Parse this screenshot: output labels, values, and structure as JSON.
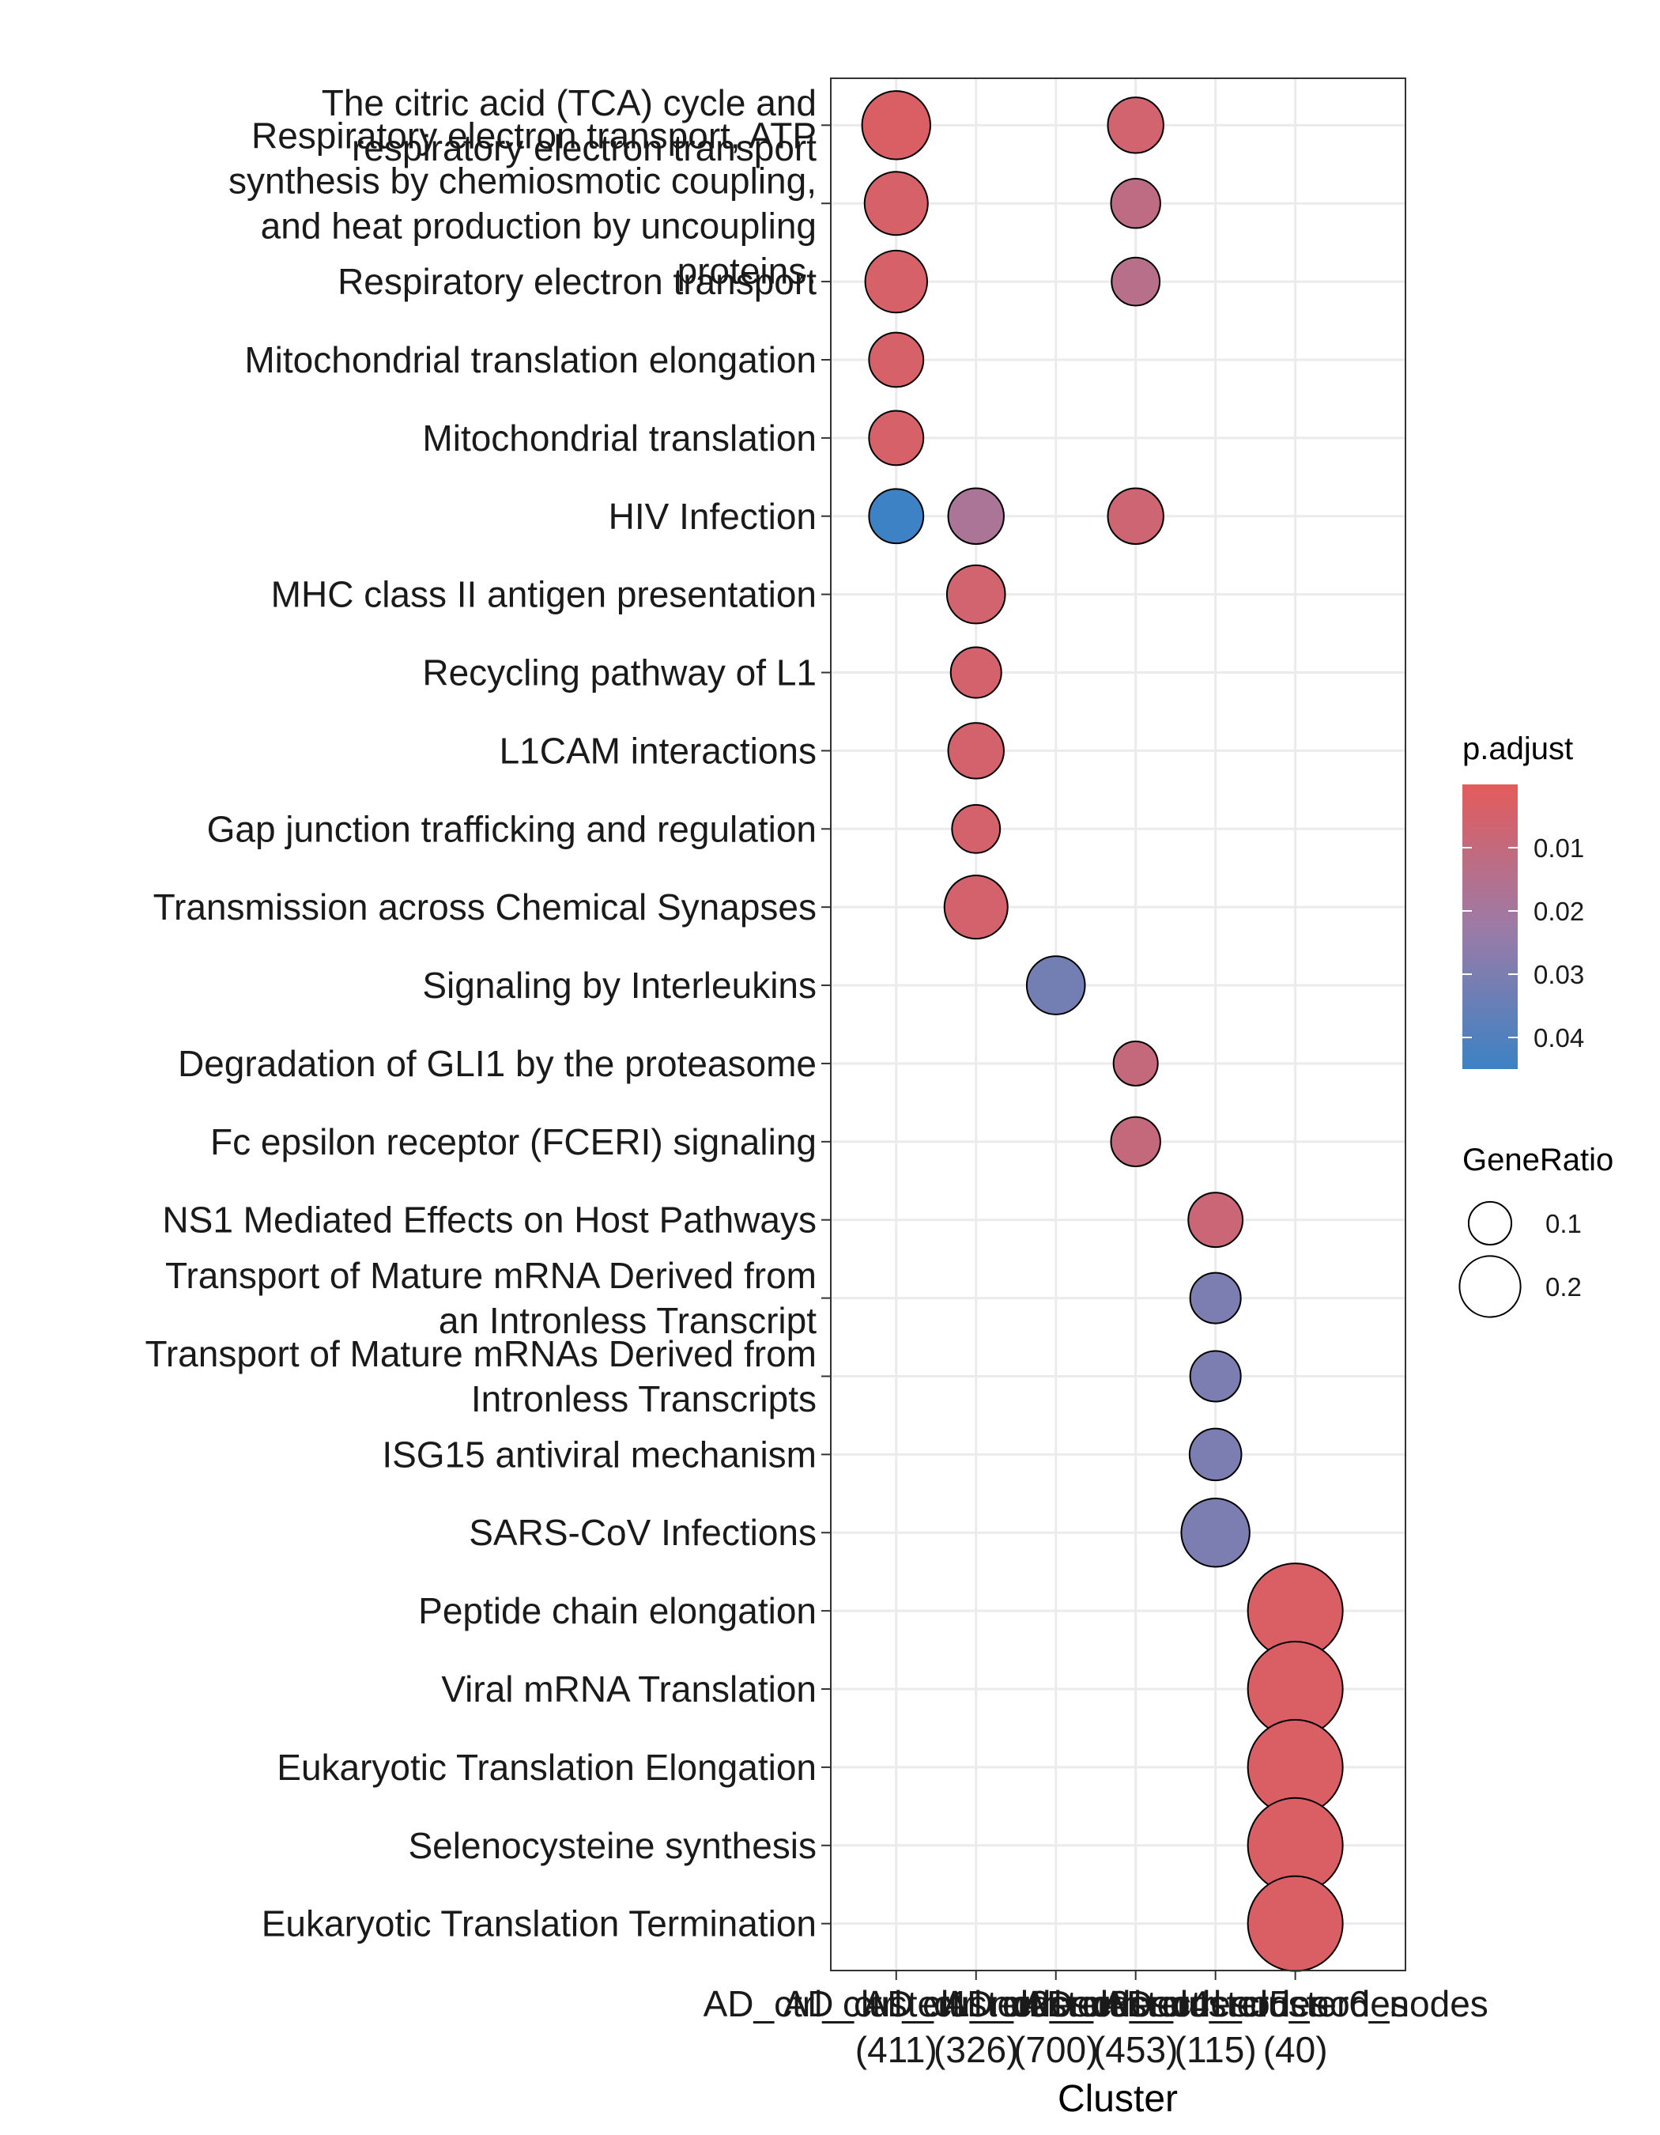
{
  "chart_data": {
    "type": "scatter",
    "xlabel": "Cluster",
    "categories": [
      [
        "AD_ctrl_cluster1_nodes",
        "(411)"
      ],
      [
        "AD_ctrl_cluster2_nodes",
        "(326)"
      ],
      [
        "AD_ctrl_cluster3_nodes",
        "(700)"
      ],
      [
        "AD_ctrl_cluster4_nodes",
        "(453)"
      ],
      [
        "AD_ctrl_cluster5_nodes",
        "(115)"
      ],
      [
        "AD_ctrl_cluster6_nodes",
        "(40)"
      ]
    ],
    "terms": [
      [
        "The citric acid (TCA) cycle and",
        "respiratory electron transport"
      ],
      [
        "Respiratory electron transport, ATP",
        "synthesis by chemiosmotic coupling,",
        "and heat production by uncoupling",
        "proteins."
      ],
      [
        "Respiratory electron transport"
      ],
      [
        "Mitochondrial translation elongation"
      ],
      [
        "Mitochondrial translation"
      ],
      [
        "HIV Infection"
      ],
      [
        "MHC class II antigen presentation"
      ],
      [
        "Recycling pathway of L1"
      ],
      [
        "L1CAM interactions"
      ],
      [
        "Gap junction trafficking and regulation"
      ],
      [
        "Transmission across Chemical Synapses"
      ],
      [
        "Signaling by Interleukins"
      ],
      [
        "Degradation of GLI1 by the proteasome"
      ],
      [
        "Fc epsilon receptor (FCERI) signaling"
      ],
      [
        "NS1 Mediated Effects on Host Pathways"
      ],
      [
        "Transport of Mature mRNA Derived from",
        "an Intronless Transcript"
      ],
      [
        "Transport of Mature mRNAs Derived from",
        "Intronless Transcripts"
      ],
      [
        "ISG15 antiviral mechanism"
      ],
      [
        "SARS-CoV Infections"
      ],
      [
        "Peptide chain elongation"
      ],
      [
        "Viral mRNA Translation"
      ],
      [
        "Eukaryotic Translation Elongation"
      ],
      [
        "Selenocysteine synthesis"
      ],
      [
        "Eukaryotic Translation Termination"
      ]
    ],
    "points": [
      {
        "cluster": 0,
        "term": 0,
        "gene_ratio": 0.135,
        "p_adjust": 0.003
      },
      {
        "cluster": 0,
        "term": 1,
        "gene_ratio": 0.115,
        "p_adjust": 0.004
      },
      {
        "cluster": 0,
        "term": 2,
        "gene_ratio": 0.11,
        "p_adjust": 0.004
      },
      {
        "cluster": 0,
        "term": 3,
        "gene_ratio": 0.08,
        "p_adjust": 0.004
      },
      {
        "cluster": 0,
        "term": 4,
        "gene_ratio": 0.08,
        "p_adjust": 0.004
      },
      {
        "cluster": 0,
        "term": 5,
        "gene_ratio": 0.08,
        "p_adjust": 0.045
      },
      {
        "cluster": 1,
        "term": 5,
        "gene_ratio": 0.085,
        "p_adjust": 0.018
      },
      {
        "cluster": 1,
        "term": 6,
        "gene_ratio": 0.095,
        "p_adjust": 0.006
      },
      {
        "cluster": 1,
        "term": 7,
        "gene_ratio": 0.065,
        "p_adjust": 0.005
      },
      {
        "cluster": 1,
        "term": 8,
        "gene_ratio": 0.085,
        "p_adjust": 0.005
      },
      {
        "cluster": 1,
        "term": 9,
        "gene_ratio": 0.055,
        "p_adjust": 0.005
      },
      {
        "cluster": 1,
        "term": 10,
        "gene_ratio": 0.115,
        "p_adjust": 0.005
      },
      {
        "cluster": 2,
        "term": 11,
        "gene_ratio": 0.095,
        "p_adjust": 0.032
      },
      {
        "cluster": 3,
        "term": 0,
        "gene_ratio": 0.085,
        "p_adjust": 0.006
      },
      {
        "cluster": 3,
        "term": 1,
        "gene_ratio": 0.06,
        "p_adjust": 0.012
      },
      {
        "cluster": 3,
        "term": 2,
        "gene_ratio": 0.055,
        "p_adjust": 0.014
      },
      {
        "cluster": 3,
        "term": 5,
        "gene_ratio": 0.085,
        "p_adjust": 0.007
      },
      {
        "cluster": 3,
        "term": 12,
        "gene_ratio": 0.04,
        "p_adjust": 0.01
      },
      {
        "cluster": 3,
        "term": 13,
        "gene_ratio": 0.06,
        "p_adjust": 0.01
      },
      {
        "cluster": 4,
        "term": 14,
        "gene_ratio": 0.08,
        "p_adjust": 0.008
      },
      {
        "cluster": 4,
        "term": 15,
        "gene_ratio": 0.065,
        "p_adjust": 0.03
      },
      {
        "cluster": 4,
        "term": 16,
        "gene_ratio": 0.065,
        "p_adjust": 0.03
      },
      {
        "cluster": 4,
        "term": 17,
        "gene_ratio": 0.07,
        "p_adjust": 0.03
      },
      {
        "cluster": 4,
        "term": 18,
        "gene_ratio": 0.135,
        "p_adjust": 0.03
      },
      {
        "cluster": 5,
        "term": 19,
        "gene_ratio": 0.24,
        "p_adjust": 0.003
      },
      {
        "cluster": 5,
        "term": 20,
        "gene_ratio": 0.24,
        "p_adjust": 0.003
      },
      {
        "cluster": 5,
        "term": 21,
        "gene_ratio": 0.24,
        "p_adjust": 0.003
      },
      {
        "cluster": 5,
        "term": 22,
        "gene_ratio": 0.24,
        "p_adjust": 0.003
      },
      {
        "cluster": 5,
        "term": 23,
        "gene_ratio": 0.24,
        "p_adjust": 0.003
      }
    ],
    "legend": {
      "color_title": "p.adjust",
      "color_ticks": [
        0.01,
        0.02,
        0.03,
        0.04
      ],
      "color_tick_labels": [
        "0.01",
        "0.02",
        "0.03",
        "0.04"
      ],
      "color_range": [
        0.0,
        0.045
      ],
      "color_low": "#E45B5B",
      "color_mid": "#9C7BA6",
      "color_high": "#3C82C4",
      "size_title": "GeneRatio",
      "size_values": [
        0.1,
        0.2
      ],
      "size_labels": [
        "0.1",
        "0.2"
      ],
      "placement": "right"
    },
    "grid": true
  }
}
